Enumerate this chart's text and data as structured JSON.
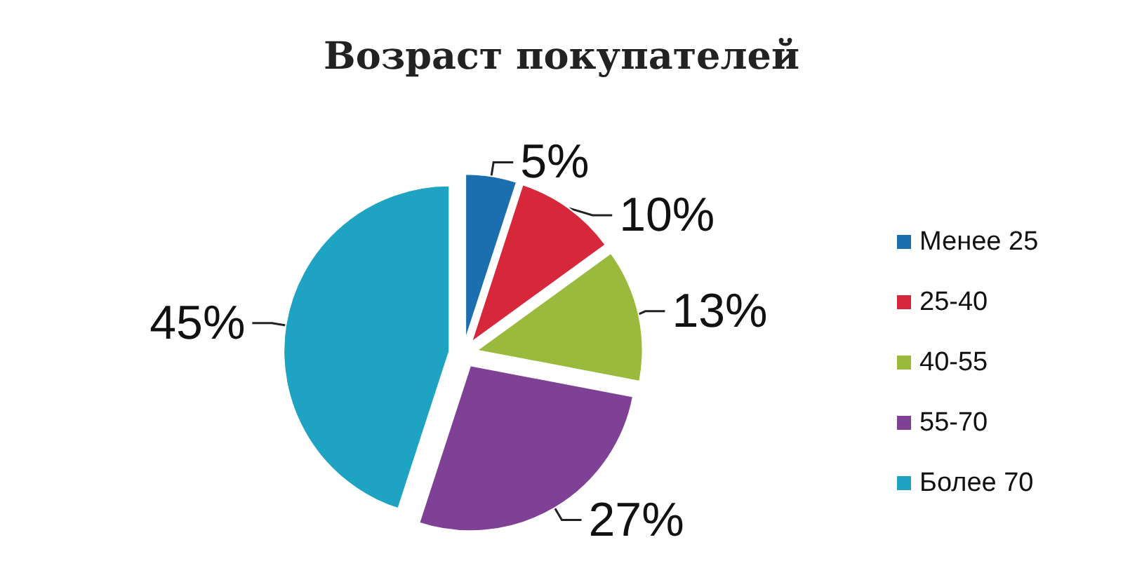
{
  "chart_data": {
    "type": "pie",
    "title": "Возраст покупателей",
    "categories": [
      "Менее 25",
      "25-40",
      "40-55",
      "55-70",
      "Более 70"
    ],
    "values": [
      5,
      10,
      13,
      27,
      45
    ],
    "value_labels": [
      "5%",
      "10%",
      "13%",
      "27%",
      "45%"
    ],
    "colors": [
      "#1b6fae",
      "#d7283b",
      "#99ba3c",
      "#7f4196",
      "#1ea3c2"
    ],
    "legend": "right"
  }
}
